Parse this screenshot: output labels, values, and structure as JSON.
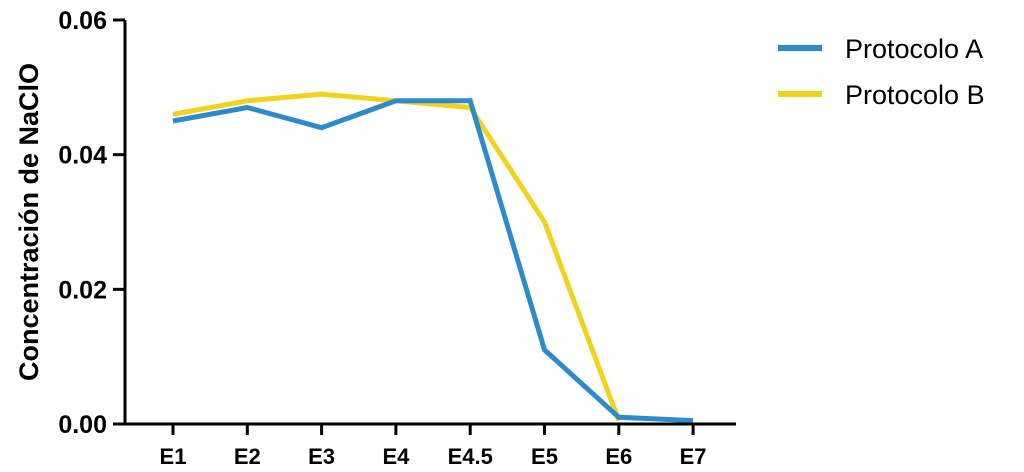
{
  "chart_data": {
    "type": "line",
    "title": "",
    "xlabel": "",
    "ylabel": "Concentración de NaClO",
    "categories": [
      "E1",
      "E2",
      "E3",
      "E4",
      "E4.5",
      "E5",
      "E6",
      "E7"
    ],
    "ylim": [
      0,
      0.06
    ],
    "yticks": [
      "0.00",
      "0.02",
      "0.04",
      "0.06"
    ],
    "grid": false,
    "legend_position": "top-right",
    "series": [
      {
        "name": "Protocolo A",
        "color": "#2e8bcb",
        "values": [
          0.045,
          0.047,
          0.044,
          0.048,
          0.048,
          0.011,
          0.001,
          0.0005
        ]
      },
      {
        "name": "Protocolo B",
        "color": "#f0d31e",
        "values": [
          0.046,
          0.048,
          0.049,
          0.048,
          0.047,
          0.03,
          0.0005,
          null
        ]
      }
    ]
  }
}
